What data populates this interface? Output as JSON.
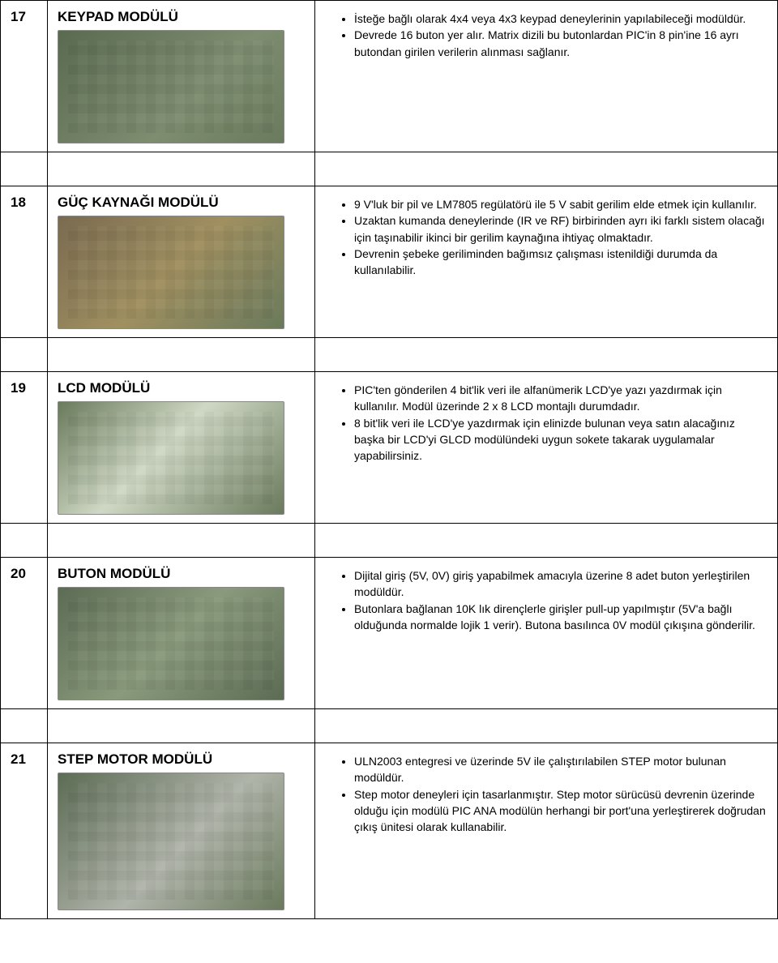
{
  "rows": [
    {
      "num": "17",
      "title": "KEYPAD MODÜLÜ",
      "imgClass": "keypad",
      "titleInDesc": false,
      "bullets": [
        "İsteğe bağlı olarak 4x4 veya 4x3 keypad deneylerinin yapılabileceği modüldür.",
        "Devrede 16 buton yer alır. Matrix dizili bu butonlardan  PIC'in 8 pin'ine 16 ayrı butondan girilen verilerin alınması sağlanır."
      ]
    },
    {
      "num": "18",
      "title": "GÜÇ KAYNAĞI MODÜLÜ",
      "imgClass": "power",
      "titleInDesc": false,
      "bullets": [
        " 9 V'luk bir pil ve LM7805 regülatörü ile 5 V  sabit gerilim elde etmek için kullanılır.",
        "Uzaktan kumanda deneylerinde (IR ve RF) birbirinden ayrı iki farklı sistem olacağı için taşınabilir ikinci bir gerilim kaynağına ihtiyaç olmaktadır.",
        "Devrenin şebeke geriliminden bağımsız çalışması istenildiği durumda da kullanılabilir."
      ]
    },
    {
      "num": "19",
      "title": "LCD MODÜLÜ",
      "imgClass": "lcd",
      "titleInDesc": false,
      "bullets": [
        "PIC'ten gönderilen 4 bit'lik veri ile alfanümerik LCD'ye yazı yazdırmak için kullanılır. Modül üzerinde 2 x 8 LCD montajlı durumdadır.",
        "8 bit'lik veri ile LCD'ye yazdırmak için elinizde bulunan veya satın alacağınız başka bir LCD'yi GLCD modülündeki uygun sokete takarak uygulamalar yapabilirsiniz."
      ]
    },
    {
      "num": "20",
      "title": "BUTON MODÜLÜ",
      "imgClass": "buton",
      "titleInDesc": false,
      "bullets": [
        "Dijital giriş (5V, 0V) giriş yapabilmek amacıyla üzerine 8 adet buton yerleştirilen modüldür.",
        "Butonlara bağlanan 10K lık dirençlerle girişler pull-up yapılmıştır (5V'a bağlı olduğunda normalde lojik 1 verir). Butona basılınca 0V modül çıkışına gönderilir."
      ]
    },
    {
      "num": "21",
      "title": "STEP MOTOR MODÜLÜ",
      "imgClass": "step",
      "titleInDesc": false,
      "bullets": [
        "ULN2003 entegresi ve üzerinde 5V ile çalıştırılabilen STEP motor bulunan modüldür.",
        "Step motor deneyleri için tasarlanmıştır. Step motor sürücüsü devrenin üzerinde olduğu için  modülü PIC ANA modülün herhangi bir port'una yerleştirerek doğrudan çıkış ünitesi olarak kullanabilir."
      ]
    }
  ]
}
